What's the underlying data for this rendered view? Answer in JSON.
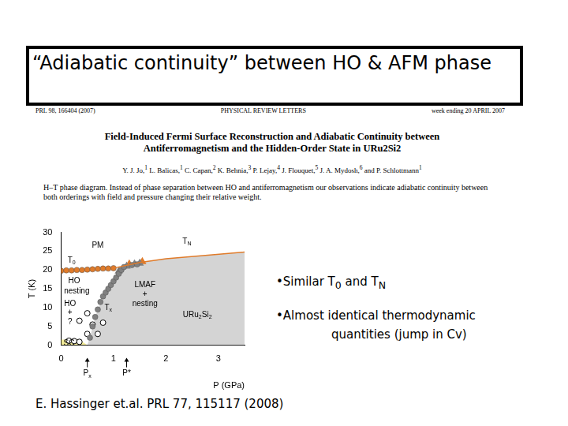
{
  "slide": {
    "title": "“Adiabatic continuity” between HO & AFM phase",
    "paper": {
      "journal_line": [
        "PRL 98, 166404 (2007)",
        "PHYSICAL REVIEW LETTERS",
        "week ending 20 APRIL 2007"
      ],
      "title": "Field-Induced Fermi Surface Reconstruction and Adiabatic Continuity between Antiferromagnetism and the Hidden-Order State in URu2Si2",
      "authors": [
        {
          "name": "Y. J. Jo,",
          "aff": "1"
        },
        {
          "name": "L. Balicas,",
          "aff": "1"
        },
        {
          "name": "C. Capan,",
          "aff": "2"
        },
        {
          "name": "K. Behnia,",
          "aff": "3"
        },
        {
          "name": "P. Lejay,",
          "aff": "4"
        },
        {
          "name": "J. Flouquet,",
          "aff": "5"
        },
        {
          "name": "J. A. Mydosh,",
          "aff": "6"
        },
        {
          "name": "and P. Schlottmann",
          "aff": "1"
        }
      ],
      "abstract": "H–T phase diagram. Instead of phase separation between HO and antiferromagnetism our observations indicate adiabatic continuity between both orderings with field and pressure changing their relative weight."
    },
    "bullets": [
      [
        {
          "text": "•Similar T"
        },
        {
          "sub": "0"
        },
        {
          "text": " and T"
        },
        {
          "sub": "N"
        }
      ],
      [
        {
          "text": "•Almost identical thermodynamic quantities (jump in Cv)"
        }
      ]
    ],
    "citation": "E. Hassinger et.al. PRL 77, 115117 (2008)"
  },
  "chart_data": {
    "type": "scatter",
    "x_label": "P (GPa)",
    "y_label": "T (K)",
    "xlim": [
      0,
      3.5
    ],
    "xticks": [
      0,
      1,
      2,
      3
    ],
    "ylim": [
      0,
      30
    ],
    "yticks": [
      0,
      5,
      10,
      15,
      20,
      25,
      30
    ],
    "grid": false,
    "regions": [
      {
        "color": "#d4d4d4",
        "x": [
          0.5,
          0.55,
          0.65,
          0.8,
          0.9,
          1.0,
          1.1,
          1.2,
          1.5,
          2.0,
          3.5
        ],
        "values": [
          0,
          2,
          7.5,
          13,
          15,
          17,
          19,
          20.8,
          22,
          23,
          24.8
        ]
      },
      {
        "color": "#f3ec9a",
        "x": [
          0,
          0.35,
          0.5
        ],
        "values": [
          1.5,
          1.5,
          0
        ]
      }
    ],
    "series": [
      {
        "color": "#e07b2a",
        "marker": "none",
        "line_style": "solid",
        "x": [
          1.0,
          1.5,
          2.0,
          3.5
        ],
        "values": [
          20.5,
          22,
          23,
          24.8
        ]
      },
      {
        "color": "#e07b2a",
        "marker": "circle",
        "line_style": "solid",
        "x": [
          0,
          0.1,
          0.2,
          0.3,
          0.4,
          0.5,
          0.6,
          0.7,
          0.8,
          0.9,
          1.0
        ],
        "values": [
          19.8,
          19.9,
          19.9,
          20.0,
          20.0,
          20.1,
          20.2,
          20.3,
          20.4,
          20.4,
          20.5
        ]
      },
      {
        "color": "#808080",
        "marker": "circle",
        "line_style": "none",
        "x": [
          0.55,
          0.6,
          0.65,
          0.7,
          0.75,
          0.8,
          0.85,
          0.9,
          0.95,
          1.0,
          1.05,
          1.1,
          1.15,
          1.2,
          1.35,
          1.45
        ],
        "values": [
          2,
          5,
          7.5,
          9.5,
          11.5,
          13,
          14,
          15,
          16,
          17,
          18,
          19,
          20,
          20.8,
          21.3,
          21.5
        ]
      },
      {
        "color": "#808080",
        "marker": "triangle",
        "line_style": "none",
        "x": [
          1.1,
          1.25,
          1.4,
          1.5
        ],
        "values": [
          19.7,
          21,
          21.6,
          21.8
        ]
      },
      {
        "color": "#e07b2a",
        "marker": "triangle",
        "line_style": "none",
        "x": [
          1.3,
          1.55
        ],
        "values": [
          21.6,
          22.2
        ]
      },
      {
        "color": "#000000",
        "marker": "open_circle",
        "line_style": "none",
        "x": [
          0.35,
          0.5,
          0.6,
          0.5,
          0.7,
          0.8,
          0.15,
          0.25,
          0.35
        ],
        "values": [
          6.5,
          8.5,
          5.5,
          3,
          3,
          6,
          1.2,
          1.1,
          0.9
        ]
      }
    ],
    "annotations": [
      {
        "parts": [
          {
            "text": "PM"
          }
        ],
        "x": 0.7,
        "y": 26.5
      },
      {
        "parts": [
          {
            "text": "T"
          },
          {
            "sub": "0"
          }
        ],
        "x": 0.2,
        "y": 22.5
      },
      {
        "parts": [
          {
            "text": "T"
          },
          {
            "sub": "N"
          }
        ],
        "x": 2.4,
        "y": 27.5
      },
      {
        "parts": [
          {
            "text": "HO"
          }
        ],
        "x": 0.25,
        "y": 17
      },
      {
        "parts": [
          {
            "text": "nesting"
          }
        ],
        "x": 0.3,
        "y": 14.3
      },
      {
        "parts": [
          {
            "text": "HO"
          }
        ],
        "x": 0.17,
        "y": 11
      },
      {
        "parts": [
          {
            "text": "+"
          }
        ],
        "x": 0.17,
        "y": 8.6
      },
      {
        "parts": [
          {
            "text": "?"
          }
        ],
        "x": 0.17,
        "y": 6.2
      },
      {
        "parts": [
          {
            "text": "T"
          },
          {
            "sub": "x"
          }
        ],
        "x": 0.9,
        "y": 10
      },
      {
        "parts": [
          {
            "text": "LMAF"
          }
        ],
        "x": 1.6,
        "y": 16
      },
      {
        "parts": [
          {
            "text": "+"
          }
        ],
        "x": 1.6,
        "y": 13.5
      },
      {
        "parts": [
          {
            "text": "nesting"
          }
        ],
        "x": 1.6,
        "y": 11
      },
      {
        "parts": [
          {
            "text": "URu"
          },
          {
            "sub": "2"
          },
          {
            "text": "Si"
          },
          {
            "sub": "2"
          }
        ],
        "x": 2.6,
        "y": 8
      },
      {
        "parts": [
          {
            "text": "SC"
          }
        ],
        "x": 0.15,
        "y": 0.5
      }
    ],
    "x_markers": [
      {
        "x": 0.5,
        "parts": [
          {
            "text": "P"
          },
          {
            "sub": "x"
          }
        ]
      },
      {
        "x": 1.25,
        "parts": [
          {
            "text": "P*"
          }
        ]
      }
    ]
  }
}
